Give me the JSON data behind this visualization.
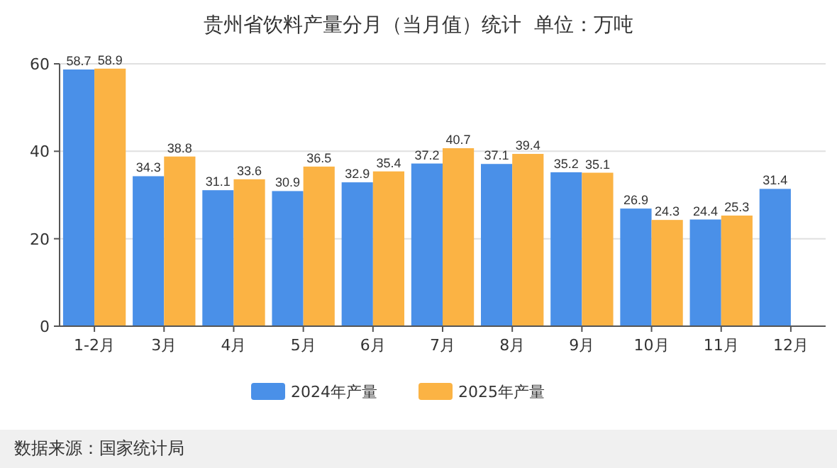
{
  "chart_data": {
    "type": "bar",
    "title": "贵州省饮料产量分月（当月值）统计  单位：万吨",
    "categories": [
      "1-2月",
      "3月",
      "4月",
      "5月",
      "6月",
      "7月",
      "8月",
      "9月",
      "10月",
      "11月",
      "12月"
    ],
    "series": [
      {
        "name": "2024年产量",
        "color": "#4a90e8",
        "values": [
          58.7,
          34.3,
          31.1,
          30.9,
          32.9,
          37.2,
          37.1,
          35.2,
          26.9,
          24.4,
          31.4
        ]
      },
      {
        "name": "2025年产量",
        "color": "#fbb344",
        "values": [
          58.9,
          38.8,
          33.6,
          36.5,
          35.4,
          40.7,
          39.4,
          35.1,
          24.3,
          25.3,
          null
        ]
      }
    ],
    "ylim": [
      0,
      60
    ],
    "yticks": [
      0,
      20,
      40,
      60
    ],
    "grid": "y",
    "legend": "bottom",
    "data_labels": true,
    "annotations": [
      "数据来源：国家统计局"
    ]
  }
}
